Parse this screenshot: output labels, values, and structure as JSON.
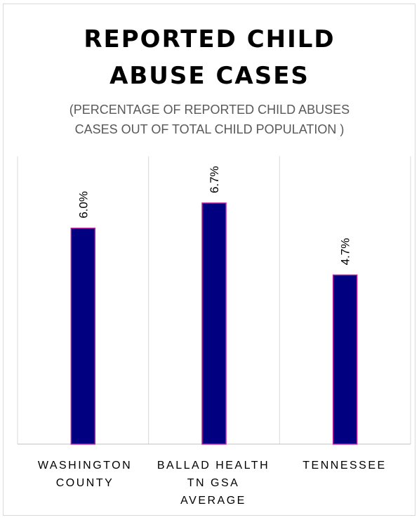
{
  "chart_data": {
    "type": "bar",
    "title_lines": [
      "REPORTED CHILD",
      "ABUSE CASES"
    ],
    "subtitle_lines": [
      "(PERCENTAGE OF REPORTED CHILD ABUSES",
      "CASES OUT OF TOTAL CHILD POPULATION )"
    ],
    "categories": [
      {
        "lines": [
          "WASHINGTON",
          "COUNTY"
        ]
      },
      {
        "lines": [
          "BALLAD HEALTH",
          "TN GSA",
          "AVERAGE"
        ]
      },
      {
        "lines": [
          "TENNESSEE"
        ]
      }
    ],
    "values": [
      6.0,
      6.7,
      4.7
    ],
    "data_labels": [
      "6.0%",
      "6.7%",
      "4.7%"
    ],
    "unit": "%",
    "ylim": [
      0,
      8.0
    ],
    "grid": "vertical category separators",
    "legend": "none",
    "colors": {
      "bar_fill": "#000080",
      "bar_outline": "#c0209a",
      "grid": "#d9d9d9",
      "axis": "#bfbfbf"
    }
  }
}
